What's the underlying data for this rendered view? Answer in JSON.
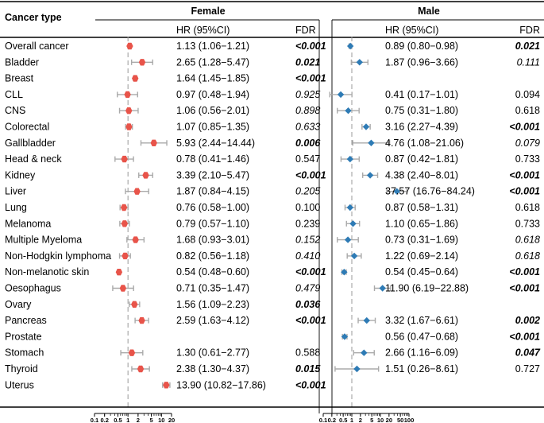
{
  "chart_data": {
    "type": "forest",
    "header_label": "Cancer type",
    "panels": [
      {
        "name": "Female",
        "hr_header": "HR (95%CI)",
        "fdr_header": "FDR",
        "marker_color": "#e8544a",
        "axis": {
          "scale": "log10",
          "range": [
            0.1,
            20
          ],
          "ref": 1,
          "ticks": [
            "0.1",
            "0.2",
            "0.5",
            "1",
            "2",
            "5",
            "10",
            "20"
          ]
        }
      },
      {
        "name": "Male",
        "hr_header": "HR (95%CI)",
        "fdr_header": "FDR",
        "marker_color": "#2e7bb5",
        "axis": {
          "scale": "log10",
          "range": [
            0.1,
            100
          ],
          "ref": 1,
          "ticks": [
            "0.1",
            "0.2",
            "0.5",
            "1",
            "2",
            "5",
            "10",
            "20",
            "50",
            "100"
          ]
        }
      }
    ],
    "rows": [
      {
        "label": "Overall cancer",
        "female": {
          "hr": 1.13,
          "lo": 1.06,
          "hi": 1.21,
          "text": "1.13 (1.06−1.21)",
          "fdr": "<0.001",
          "style": "bi"
        },
        "male": {
          "hr": 0.89,
          "lo": 0.8,
          "hi": 0.98,
          "text": "0.89 (0.80−0.98)",
          "fdr": "0.021",
          "style": "bi"
        }
      },
      {
        "label": "Bladder",
        "female": {
          "hr": 2.65,
          "lo": 1.28,
          "hi": 5.47,
          "text": "2.65 (1.28−5.47)",
          "fdr": "0.021",
          "style": "bi"
        },
        "male": {
          "hr": 1.87,
          "lo": 0.96,
          "hi": 3.66,
          "text": "1.87 (0.96−3.66)",
          "fdr": "0.111",
          "style": "i"
        }
      },
      {
        "label": "Breast",
        "female": {
          "hr": 1.64,
          "lo": 1.45,
          "hi": 1.85,
          "text": "1.64 (1.45−1.85)",
          "fdr": "<0.001",
          "style": "bi"
        },
        "male": null
      },
      {
        "label": "CLL",
        "female": {
          "hr": 0.97,
          "lo": 0.48,
          "hi": 1.94,
          "text": "0.97 (0.48−1.94)",
          "fdr": "0.925",
          "style": "i"
        },
        "male": {
          "hr": 0.41,
          "lo": 0.17,
          "hi": 1.01,
          "text": "0.41 (0.17−1.01)",
          "fdr": "0.094",
          "style": "n"
        }
      },
      {
        "label": "CNS",
        "female": {
          "hr": 1.06,
          "lo": 0.56,
          "hi": 2.01,
          "text": "1.06 (0.56−2.01)",
          "fdr": "0.898",
          "style": "i"
        },
        "male": {
          "hr": 0.75,
          "lo": 0.31,
          "hi": 1.8,
          "text": "0.75 (0.31−1.80)",
          "fdr": "0.618",
          "style": "n"
        }
      },
      {
        "label": "Colorectal",
        "female": {
          "hr": 1.07,
          "lo": 0.85,
          "hi": 1.35,
          "text": "1.07 (0.85−1.35)",
          "fdr": "0.633",
          "style": "i"
        },
        "male": {
          "hr": 3.16,
          "lo": 2.27,
          "hi": 4.39,
          "text": "3.16 (2.27−4.39)",
          "fdr": "<0.001",
          "style": "bi"
        }
      },
      {
        "label": "Gallbladder",
        "female": {
          "hr": 5.93,
          "lo": 2.44,
          "hi": 14.44,
          "text": "5.93 (2.44−14.44)",
          "fdr": "0.006",
          "style": "bi"
        },
        "male": {
          "hr": 4.76,
          "lo": 1.08,
          "hi": 21.06,
          "text": "4.76 (1.08−21.06)",
          "fdr": "0.079",
          "style": "i"
        }
      },
      {
        "label": "Head & neck",
        "female": {
          "hr": 0.78,
          "lo": 0.41,
          "hi": 1.46,
          "text": "0.78 (0.41−1.46)",
          "fdr": "0.547",
          "style": "n"
        },
        "male": {
          "hr": 0.87,
          "lo": 0.42,
          "hi": 1.81,
          "text": "0.87 (0.42−1.81)",
          "fdr": "0.733",
          "style": "n"
        }
      },
      {
        "label": "Kidney",
        "female": {
          "hr": 3.39,
          "lo": 2.1,
          "hi": 5.47,
          "text": "3.39 (2.10−5.47)",
          "fdr": "<0.001",
          "style": "bi"
        },
        "male": {
          "hr": 4.38,
          "lo": 2.4,
          "hi": 8.01,
          "text": "4.38 (2.40−8.01)",
          "fdr": "<0.001",
          "style": "bi"
        }
      },
      {
        "label": "Liver",
        "female": {
          "hr": 1.87,
          "lo": 0.84,
          "hi": 4.15,
          "text": "1.87 (0.84−4.15)",
          "fdr": "0.205",
          "style": "i"
        },
        "male": {
          "hr": 37.57,
          "lo": 16.76,
          "hi": 84.24,
          "text": "37.57 (16.76−84.24)",
          "fdr": "<0.001",
          "style": "bi"
        }
      },
      {
        "label": "Lung",
        "female": {
          "hr": 0.76,
          "lo": 0.58,
          "hi": 1.0,
          "text": "0.76 (0.58−1.00)",
          "fdr": "0.100",
          "style": "n"
        },
        "male": {
          "hr": 0.87,
          "lo": 0.58,
          "hi": 1.31,
          "text": "0.87 (0.58−1.31)",
          "fdr": "0.618",
          "style": "n"
        }
      },
      {
        "label": "Melanoma",
        "female": {
          "hr": 0.79,
          "lo": 0.57,
          "hi": 1.1,
          "text": "0.79 (0.57−1.10)",
          "fdr": "0.239",
          "style": "n"
        },
        "male": {
          "hr": 1.1,
          "lo": 0.65,
          "hi": 1.86,
          "text": "1.10 (0.65−1.86)",
          "fdr": "0.733",
          "style": "n"
        }
      },
      {
        "label": "Multiple Myeloma",
        "female": {
          "hr": 1.68,
          "lo": 0.93,
          "hi": 3.01,
          "text": "1.68 (0.93−3.01)",
          "fdr": "0.152",
          "style": "i"
        },
        "male": {
          "hr": 0.73,
          "lo": 0.31,
          "hi": 1.69,
          "text": "0.73 (0.31−1.69)",
          "fdr": "0.618",
          "style": "i"
        }
      },
      {
        "label": "Non-Hodgkin lymphoma",
        "female": {
          "hr": 0.82,
          "lo": 0.56,
          "hi": 1.18,
          "text": "0.82 (0.56−1.18)",
          "fdr": "0.410",
          "style": "i"
        },
        "male": {
          "hr": 1.22,
          "lo": 0.69,
          "hi": 2.14,
          "text": "1.22 (0.69−2.14)",
          "fdr": "0.618",
          "style": "i"
        }
      },
      {
        "label": "Non-melanotic skin",
        "female": {
          "hr": 0.54,
          "lo": 0.48,
          "hi": 0.6,
          "text": "0.54 (0.48−0.60)",
          "fdr": "<0.001",
          "style": "bi"
        },
        "male": {
          "hr": 0.54,
          "lo": 0.45,
          "hi": 0.64,
          "text": "0.54 (0.45−0.64)",
          "fdr": "<0.001",
          "style": "bi"
        }
      },
      {
        "label": "Oesophagus",
        "female": {
          "hr": 0.71,
          "lo": 0.35,
          "hi": 1.47,
          "text": "0.71 (0.35−1.47)",
          "fdr": "0.479",
          "style": "i"
        },
        "male": {
          "hr": 11.9,
          "lo": 6.19,
          "hi": 22.88,
          "text": "11.90 (6.19−22.88)",
          "fdr": "<0.001",
          "style": "bi"
        }
      },
      {
        "label": "Ovary",
        "female": {
          "hr": 1.56,
          "lo": 1.09,
          "hi": 2.23,
          "text": "1.56 (1.09−2.23)",
          "fdr": "0.036",
          "style": "bi"
        },
        "male": null
      },
      {
        "label": "Pancreas",
        "female": {
          "hr": 2.59,
          "lo": 1.63,
          "hi": 4.12,
          "text": "2.59 (1.63−4.12)",
          "fdr": "<0.001",
          "style": "bi"
        },
        "male": {
          "hr": 3.32,
          "lo": 1.67,
          "hi": 6.61,
          "text": "3.32 (1.67−6.61)",
          "fdr": "0.002",
          "style": "bi"
        }
      },
      {
        "label": "Prostate",
        "female": null,
        "male": {
          "hr": 0.56,
          "lo": 0.47,
          "hi": 0.68,
          "text": "0.56 (0.47−0.68)",
          "fdr": "<0.001",
          "style": "bi"
        }
      },
      {
        "label": "Stomach",
        "female": {
          "hr": 1.3,
          "lo": 0.61,
          "hi": 2.77,
          "text": "1.30 (0.61−2.77)",
          "fdr": "0.588",
          "style": "n"
        },
        "male": {
          "hr": 2.66,
          "lo": 1.16,
          "hi": 6.09,
          "text": "2.66 (1.16−6.09)",
          "fdr": "0.047",
          "style": "bi"
        }
      },
      {
        "label": "Thyroid",
        "female": {
          "hr": 2.38,
          "lo": 1.3,
          "hi": 4.37,
          "text": "2.38 (1.30−4.37)",
          "fdr": "0.015",
          "style": "bi"
        },
        "male": {
          "hr": 1.51,
          "lo": 0.26,
          "hi": 8.61,
          "text": "1.51 (0.26−8.61)",
          "fdr": "0.727",
          "style": "n"
        }
      },
      {
        "label": "Uterus",
        "female": {
          "hr": 13.9,
          "lo": 10.82,
          "hi": 17.86,
          "text": "13.90 (10.82−17.86)",
          "fdr": "<0.001",
          "style": "bi"
        },
        "male": null
      }
    ]
  }
}
